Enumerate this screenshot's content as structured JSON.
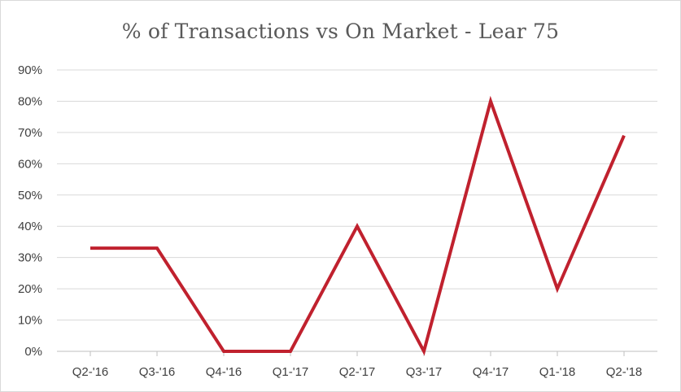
{
  "chart_data": {
    "type": "line",
    "title": "% of Transactions vs On Market - Lear 75",
    "xlabel": "",
    "ylabel": "",
    "categories": [
      "Q2-'16",
      "Q3-'16",
      "Q4-'16",
      "Q1-'17",
      "Q2-'17",
      "Q3-'17",
      "Q4-'17",
      "Q1-'18",
      "Q2-'18"
    ],
    "series": [
      {
        "values": [
          33,
          33,
          0,
          0,
          40,
          0,
          80,
          20,
          69
        ]
      }
    ],
    "ylim": [
      0,
      90
    ],
    "yticks": [
      0,
      10,
      20,
      30,
      40,
      50,
      60,
      70,
      80,
      90
    ],
    "ytick_labels": [
      "0%",
      "10%",
      "20%",
      "30%",
      "40%",
      "50%",
      "60%",
      "70%",
      "80%",
      "90%"
    ],
    "grid": true,
    "legend": "none",
    "colors": {
      "line": "#c0212e",
      "grid": "#d9d9d9",
      "axis": "#bfbfbf",
      "text": "#404040",
      "title": "#595959"
    }
  }
}
